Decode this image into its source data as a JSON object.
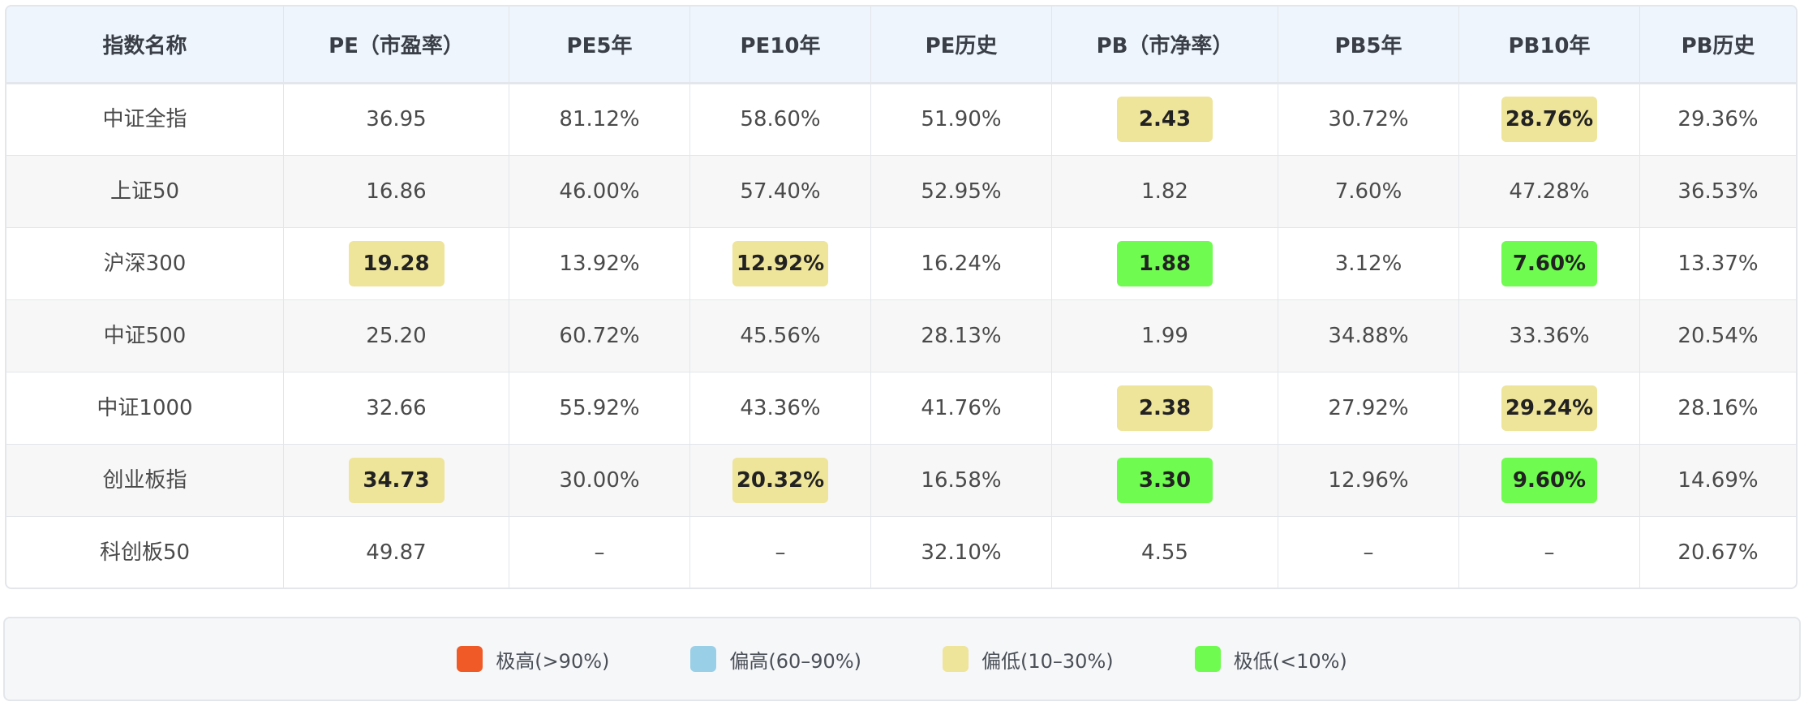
{
  "table": {
    "headers": [
      "指数名称",
      "PE（市盈率）",
      "PE5年",
      "PE10年",
      "PE历史",
      "PB（市净率）",
      "PB5年",
      "PB10年",
      "PB历史"
    ],
    "rows": [
      {
        "cells": [
          "中证全指",
          "36.95",
          "81.12%",
          "58.60%",
          "51.90%",
          "2.43",
          "30.72%",
          "28.76%",
          "29.36%"
        ],
        "highlights": [
          "",
          "",
          "",
          "",
          "",
          "low",
          "",
          "low",
          ""
        ]
      },
      {
        "cells": [
          "上证50",
          "16.86",
          "46.00%",
          "57.40%",
          "52.95%",
          "1.82",
          "7.60%",
          "47.28%",
          "36.53%"
        ],
        "highlights": [
          "",
          "",
          "",
          "",
          "",
          "",
          "",
          "",
          ""
        ]
      },
      {
        "cells": [
          "沪深300",
          "19.28",
          "13.92%",
          "12.92%",
          "16.24%",
          "1.88",
          "3.12%",
          "7.60%",
          "13.37%"
        ],
        "highlights": [
          "",
          "low",
          "",
          "low",
          "",
          "vlow",
          "",
          "vlow",
          ""
        ]
      },
      {
        "cells": [
          "中证500",
          "25.20",
          "60.72%",
          "45.56%",
          "28.13%",
          "1.99",
          "34.88%",
          "33.36%",
          "20.54%"
        ],
        "highlights": [
          "",
          "",
          "",
          "",
          "",
          "",
          "",
          "",
          ""
        ]
      },
      {
        "cells": [
          "中证1000",
          "32.66",
          "55.92%",
          "43.36%",
          "41.76%",
          "2.38",
          "27.92%",
          "29.24%",
          "28.16%"
        ],
        "highlights": [
          "",
          "",
          "",
          "",
          "",
          "low",
          "",
          "low",
          ""
        ]
      },
      {
        "cells": [
          "创业板指",
          "34.73",
          "30.00%",
          "20.32%",
          "16.58%",
          "3.30",
          "12.96%",
          "9.60%",
          "14.69%"
        ],
        "highlights": [
          "",
          "low",
          "",
          "low",
          "",
          "vlow",
          "",
          "vlow",
          ""
        ]
      },
      {
        "cells": [
          "科创板50",
          "49.87",
          "–",
          "–",
          "32.10%",
          "4.55",
          "–",
          "–",
          "20.67%"
        ],
        "highlights": [
          "",
          "",
          "",
          "",
          "",
          "",
          "",
          "",
          ""
        ]
      }
    ]
  },
  "colors": {
    "high": "#f05a26",
    "phigh": "#9acfe8",
    "low": "#eee49a",
    "vlow": "#6ffb4f",
    "header_bg": "#eef5fd"
  },
  "legend": [
    {
      "label": "极高(>90%)",
      "color": "#f05a26"
    },
    {
      "label": "偏高(60–90%)",
      "color": "#9acfe8"
    },
    {
      "label": "偏低(10–30%)",
      "color": "#eee49a"
    },
    {
      "label": "极低(<10%)",
      "color": "#6ffb4f"
    }
  ]
}
